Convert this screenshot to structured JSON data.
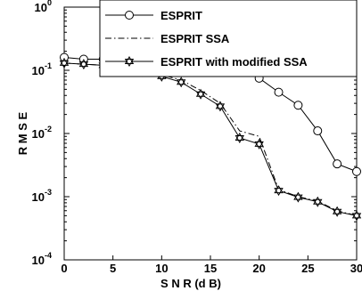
{
  "chart_data": {
    "type": "line",
    "xlabel": "S N R (d B)",
    "ylabel": "R M S E",
    "xlim": [
      0,
      30
    ],
    "ylim": [
      0.0001,
      1
    ],
    "yscale": "log",
    "grid": false,
    "legend_position": "top-right",
    "x_ticks": [
      "0",
      "5",
      "10",
      "15",
      "20",
      "25",
      "30"
    ],
    "y_ticks": [
      {
        "base": "10",
        "exp": "0"
      },
      {
        "base": "10",
        "exp": "-1"
      },
      {
        "base": "10",
        "exp": "-2"
      },
      {
        "base": "10",
        "exp": "-3"
      },
      {
        "base": "10",
        "exp": "-4"
      }
    ],
    "x": [
      0,
      2,
      4,
      6,
      8,
      10,
      12,
      14,
      16,
      18,
      20,
      22,
      24,
      26,
      28,
      30
    ],
    "series": [
      {
        "name": "ESPRIT",
        "line_style": "solid",
        "marker": "circle",
        "values": [
          0.16,
          0.15,
          0.15,
          0.15,
          0.15,
          0.145,
          0.14,
          0.13,
          0.12,
          0.1,
          0.075,
          0.045,
          0.028,
          0.011,
          0.0033,
          0.0025
        ]
      },
      {
        "name": "ESPRIT SSA",
        "line_style": "dashdot",
        "marker": "none",
        "values": [
          0.13,
          0.125,
          0.12,
          0.11,
          0.1,
          0.085,
          0.07,
          0.048,
          0.03,
          0.011,
          0.009,
          0.0013,
          0.001,
          0.00085,
          0.0006,
          0.0005
        ]
      },
      {
        "name": "ESPRIT with modified SSA",
        "line_style": "solid",
        "marker": "star",
        "values": [
          0.13,
          0.125,
          0.12,
          0.105,
          0.095,
          0.08,
          0.065,
          0.042,
          0.027,
          0.0085,
          0.0068,
          0.00125,
          0.00098,
          0.00083,
          0.00058,
          0.0005
        ]
      }
    ]
  }
}
